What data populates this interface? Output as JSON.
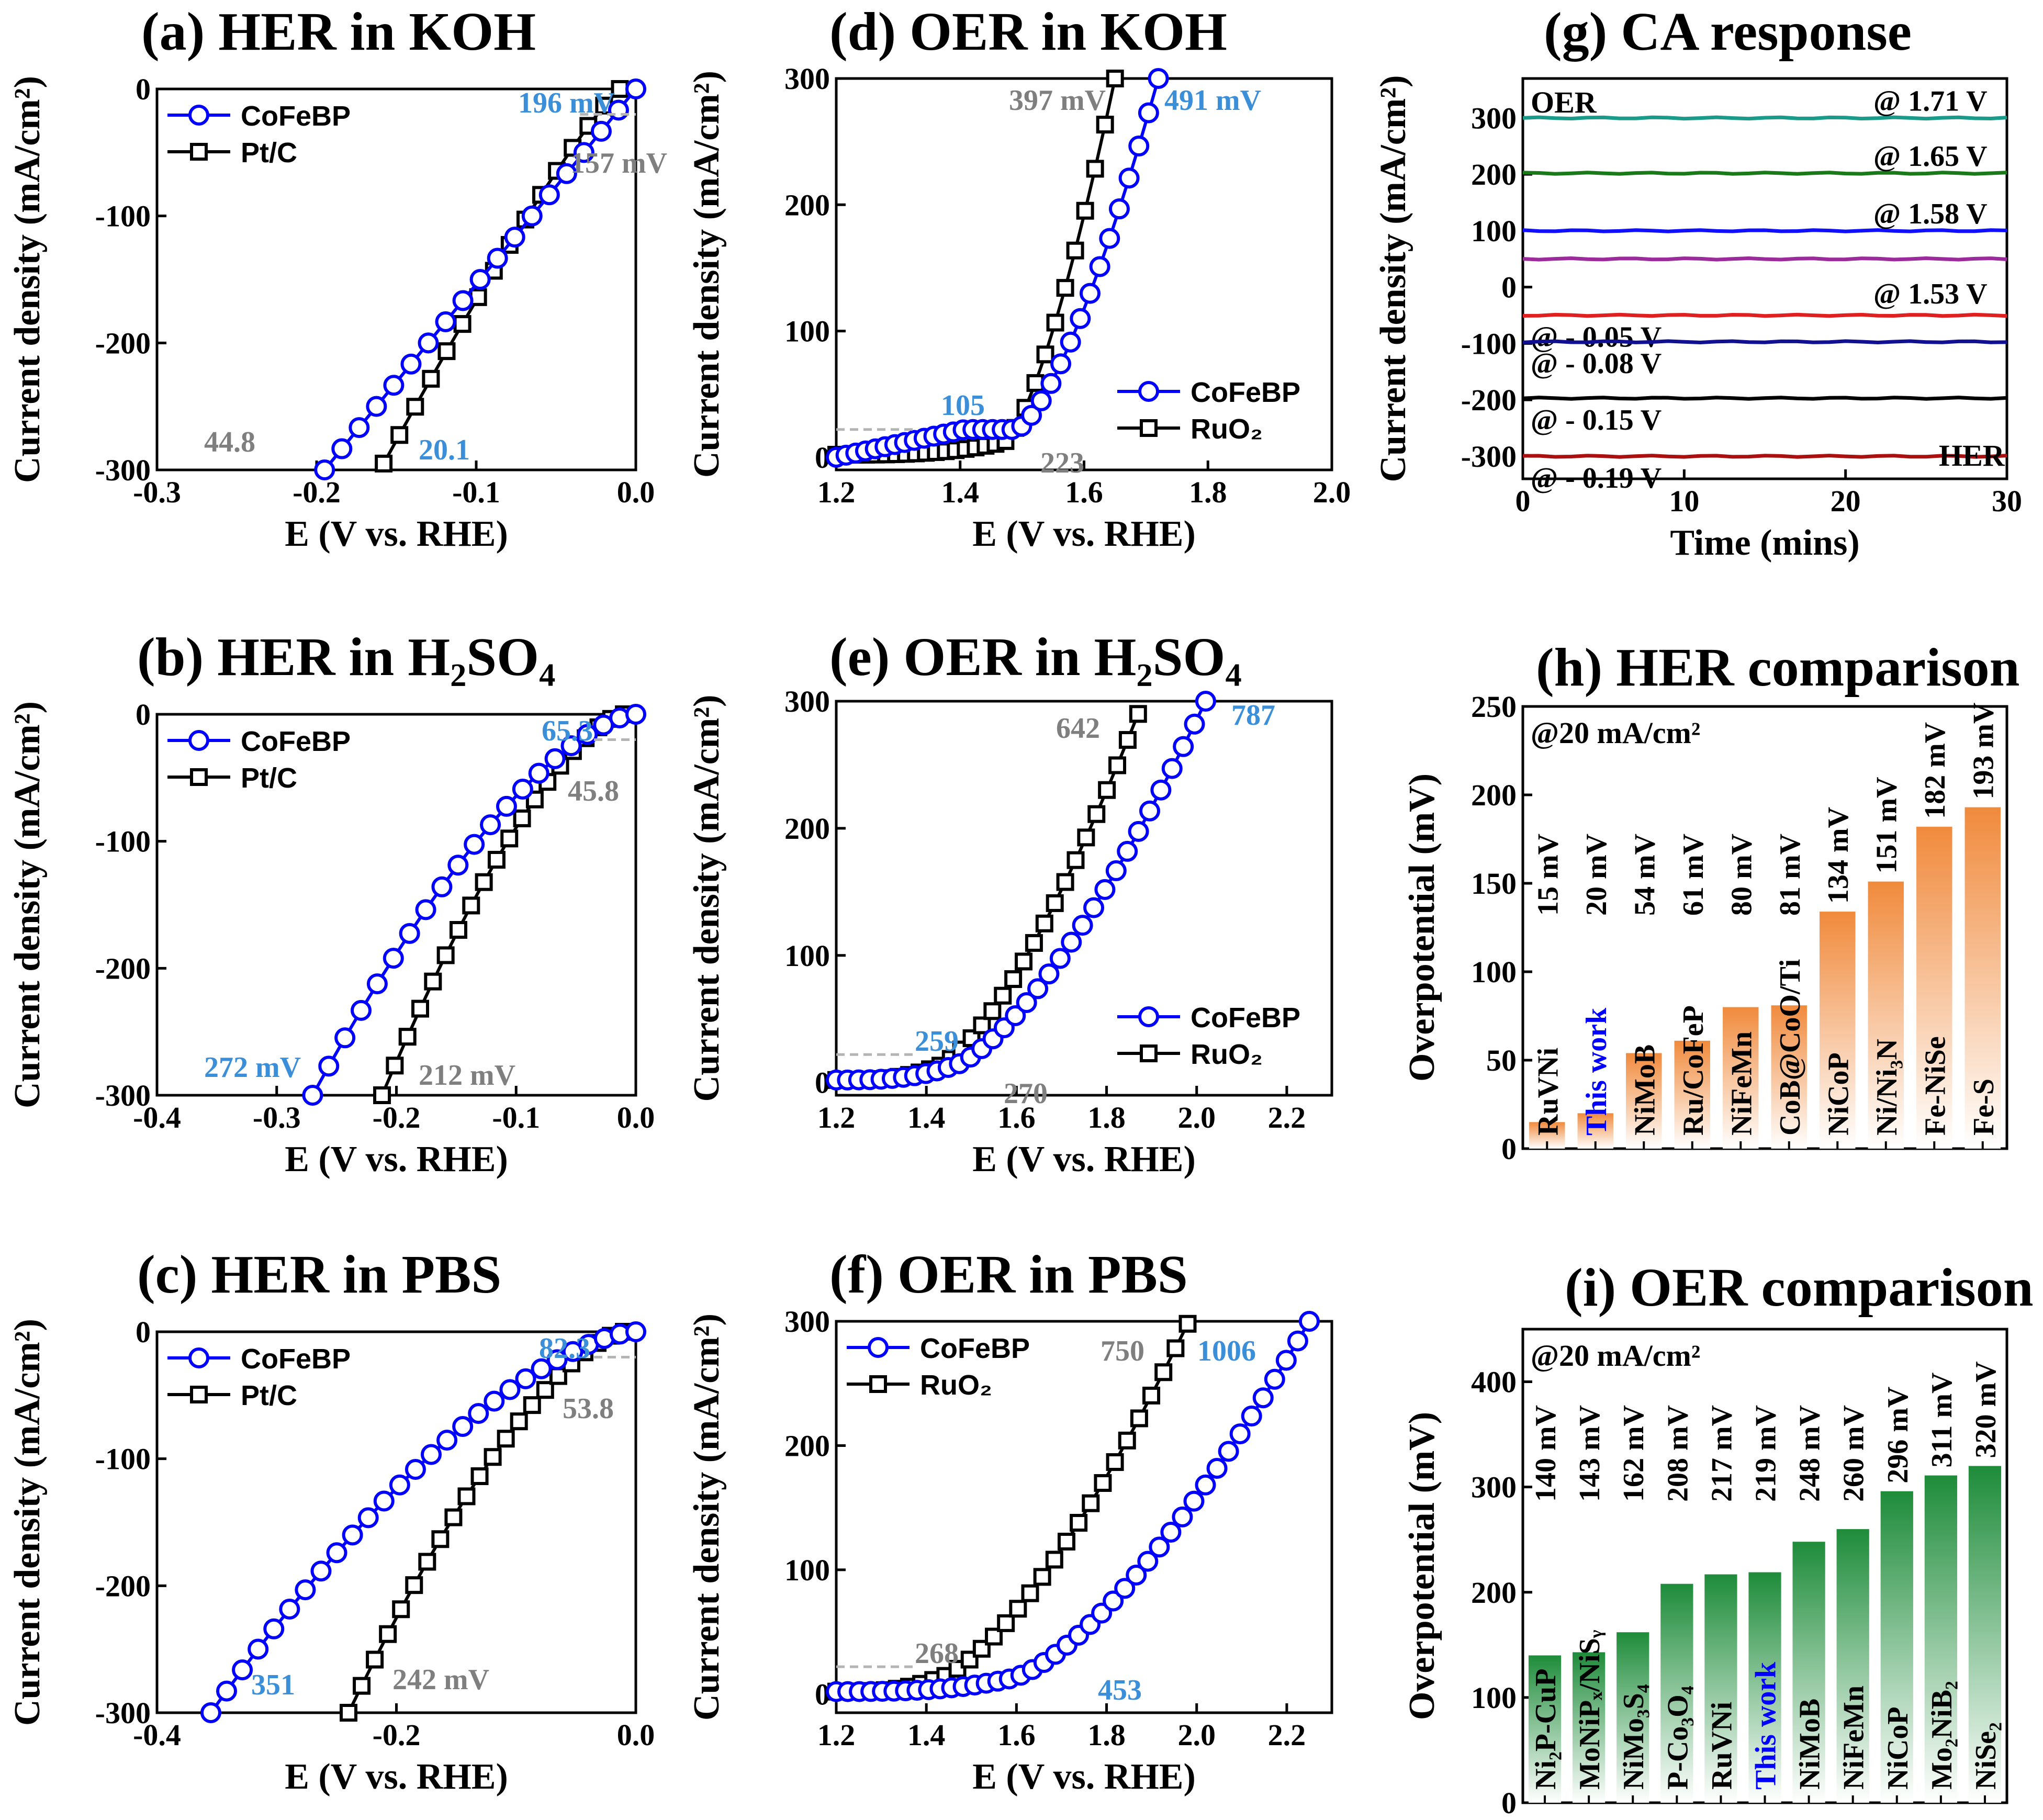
{
  "colors": {
    "cofebp": "#0000ff",
    "ref": "#000000",
    "blue_ann": "#3b8ed8",
    "gray_ann": "#7f7f7f",
    "dash": "#b4b4b4",
    "her_bar": "#f08a3c",
    "oer_bar": "#1e8c3a",
    "highlight": "#0000ff"
  },
  "chart_data": [
    {
      "id": "a",
      "type": "line",
      "title": "(a) HER in KOH",
      "xlabel": "E (V vs. RHE)",
      "ylabel": "Current density (mA/cm²)",
      "xlim": [
        -0.3,
        0.0
      ],
      "ylim": [
        -300,
        0
      ],
      "xticks": [
        "-0.3",
        "-0.2",
        "-0.1",
        "0.0"
      ],
      "yticks": [
        "-300",
        "-200",
        "-100",
        "0"
      ],
      "legend": "top-left",
      "series": [
        {
          "name": "CoFeBP",
          "marker": "circle",
          "x_range": [
            -0.195,
            0.0
          ],
          "y_at_start": -300,
          "onset": 20.1,
          "curvature": 1.0
        },
        {
          "name": "Pt/C",
          "marker": "square",
          "x_range": [
            -0.158,
            -0.01
          ],
          "y_at_start": -295,
          "onset": 44.8,
          "curvature": 1.1
        }
      ],
      "annotations": [
        {
          "text": "196 mV",
          "x": -0.196,
          "y": -280,
          "color": "blue"
        },
        {
          "text": "157 mV",
          "x": -0.13,
          "y": -290,
          "color": "gray"
        },
        {
          "text": "44.8",
          "x": -0.065,
          "y": -8,
          "color": "gray"
        },
        {
          "text": "20.1",
          "x": -0.035,
          "y": -60,
          "color": "blue"
        }
      ]
    },
    {
      "id": "b",
      "type": "line",
      "title": "(b) HER in H₂SO₄",
      "xlabel": "E (V vs. RHE)",
      "ylabel": "Current density (mA/cm²)",
      "xlim": [
        -0.4,
        0.0
      ],
      "ylim": [
        -300,
        0
      ],
      "xticks": [
        "-0.4",
        "-0.3",
        "-0.2",
        "-0.1",
        "0.0"
      ],
      "yticks": [
        "-300",
        "-200",
        "-100",
        "0"
      ],
      "legend": "top-left",
      "series": [
        {
          "name": "CoFeBP",
          "marker": "circle",
          "x_range": [
            -0.27,
            0.0
          ],
          "onset": 65.3
        },
        {
          "name": "Pt/C",
          "marker": "square",
          "x_range": [
            -0.21,
            -0.01
          ],
          "onset": 45.8
        }
      ],
      "annotations": [
        {
          "text": "65.3",
          "color": "blue"
        },
        {
          "text": "45.8",
          "color": "gray"
        },
        {
          "text": "272 mV",
          "color": "blue"
        },
        {
          "text": "212 mV",
          "color": "gray"
        }
      ]
    },
    {
      "id": "c",
      "type": "line",
      "title": "(c) HER in PBS",
      "xlabel": "E (V vs. RHE)",
      "ylabel": "Current density (mA/cm²)",
      "xlim": [
        -0.4,
        0.0
      ],
      "ylim": [
        -300,
        0
      ],
      "xticks": [
        "-0.4",
        "-0.2",
        "0.0"
      ],
      "yticks": [
        "-300",
        "-200",
        "-100",
        "0"
      ],
      "legend": "top-left",
      "series": [
        {
          "name": "CoFeBP",
          "marker": "circle",
          "x_range": [
            -0.35,
            0.0
          ],
          "onset": 82.3
        },
        {
          "name": "Pt/C",
          "marker": "square",
          "x_range": [
            -0.24,
            -0.01
          ],
          "onset": 53.8
        }
      ],
      "annotations": [
        {
          "text": "82.3",
          "color": "blue"
        },
        {
          "text": "53.8",
          "color": "gray"
        },
        {
          "text": "351",
          "color": "blue"
        },
        {
          "text": "242 mV",
          "color": "gray"
        }
      ]
    },
    {
      "id": "d",
      "type": "line",
      "title": "(d) OER in KOH",
      "xlabel": "E (V vs. RHE)",
      "ylabel": "Current density (mA/cm²)",
      "xlim": [
        1.2,
        2.0
      ],
      "ylim": [
        -10,
        300
      ],
      "xticks": [
        "1.2",
        "1.4",
        "1.6",
        "1.8",
        "2.0"
      ],
      "yticks": [
        "0",
        "100",
        "200",
        "300"
      ],
      "legend": "bottom-right",
      "series": [
        {
          "name": "CoFeBP",
          "marker": "circle",
          "x_range": [
            1.2,
            1.72
          ],
          "onset": 105
        },
        {
          "name": "RuO₂",
          "marker": "square",
          "x_range": [
            1.2,
            1.65
          ],
          "onset": 223
        }
      ],
      "annotations": [
        {
          "text": "397 mV",
          "color": "gray"
        },
        {
          "text": "491 mV",
          "color": "blue"
        },
        {
          "text": "105",
          "color": "blue"
        },
        {
          "text": "223",
          "color": "gray"
        }
      ]
    },
    {
      "id": "e",
      "type": "line",
      "title": "(e) OER in H₂SO₄",
      "xlabel": "E (V vs. RHE)",
      "ylabel": "Current density (mA/cm²)",
      "xlim": [
        1.2,
        2.3
      ],
      "ylim": [
        -10,
        300
      ],
      "xticks": [
        "1.2",
        "1.4",
        "1.6",
        "1.8",
        "2.0",
        "2.2"
      ],
      "yticks": [
        "0",
        "100",
        "200",
        "300"
      ],
      "legend": "bottom-right",
      "series": [
        {
          "name": "CoFeBP",
          "marker": "circle",
          "x_range": [
            1.2,
            2.02
          ],
          "onset": 259
        },
        {
          "name": "RuO₂",
          "marker": "square",
          "x_range": [
            1.2,
            1.87
          ],
          "onset": 270
        }
      ],
      "annotations": [
        {
          "text": "642",
          "color": "gray"
        },
        {
          "text": "787",
          "color": "blue"
        },
        {
          "text": "259",
          "color": "blue"
        },
        {
          "text": "270",
          "color": "gray"
        }
      ]
    },
    {
      "id": "f",
      "type": "line",
      "title": "(f) OER in PBS",
      "xlabel": "E (V vs. RHE)",
      "ylabel": "Current density (mA/cm²)",
      "xlim": [
        1.2,
        2.3
      ],
      "ylim": [
        -15,
        300
      ],
      "xticks": [
        "1.2",
        "1.4",
        "1.6",
        "1.8",
        "2.0",
        "2.2"
      ],
      "yticks": [
        "0",
        "100",
        "200",
        "300"
      ],
      "legend": "top-left",
      "series": [
        {
          "name": "CoFeBP",
          "marker": "circle",
          "x_range": [
            1.2,
            2.25
          ],
          "onset": 453
        },
        {
          "name": "RuO₂",
          "marker": "square",
          "x_range": [
            1.2,
            1.98
          ],
          "onset": 268
        }
      ],
      "annotations": [
        {
          "text": "750",
          "color": "gray"
        },
        {
          "text": "1006",
          "color": "blue"
        },
        {
          "text": "268",
          "color": "gray"
        },
        {
          "text": "453",
          "color": "blue"
        }
      ]
    },
    {
      "id": "g",
      "type": "line",
      "title": "(g) CA response",
      "xlabel": "Time (mins)",
      "ylabel": "Current density (mA/cm²)",
      "xlim": [
        0,
        30
      ],
      "ylim": [
        -340,
        370
      ],
      "xticks": [
        "0",
        "10",
        "20",
        "30"
      ],
      "yticks": [
        "-300",
        "-200",
        "-100",
        "0",
        "100",
        "200",
        "300"
      ],
      "corner_labels": {
        "top": "OER",
        "bottom": "HER"
      },
      "series": [
        {
          "name": "@ 1.71 V",
          "y": 300,
          "color": "#1a9a8a"
        },
        {
          "name": "@ 1.65 V",
          "y": 202,
          "color": "#1a7a1a"
        },
        {
          "name": "@ 1.58 V",
          "y": 100,
          "color": "#1010ff"
        },
        {
          "name": "@ 1.53 V",
          "y": 50,
          "color": "#9b2a9b"
        },
        {
          "name": "@ - 0.05 V",
          "y": -50,
          "color": "#e02020"
        },
        {
          "name": "@ - 0.08 V",
          "y": -97,
          "color": "#101090"
        },
        {
          "name": "@ - 0.15 V",
          "y": -197,
          "color": "#000000"
        },
        {
          "name": "@ - 0.19 V",
          "y": -300,
          "color": "#aa1010"
        }
      ]
    },
    {
      "id": "h",
      "type": "bar",
      "title": "(h) HER comparison",
      "ylabel": "Overpotential (mV)",
      "ylim": [
        0,
        250
      ],
      "yticks": [
        "0",
        "50",
        "100",
        "150",
        "200",
        "250"
      ],
      "note": "@20 mA/cm²",
      "categories": [
        "RuVNi",
        "This work",
        "NiMoB",
        "Ru/CoFeP",
        "NiFeMn",
        "CoB@CoO/Ti",
        "NiCoP",
        "Ni/Ni₃N",
        "Fe-NiSe",
        "Fe-S"
      ],
      "values": [
        15,
        20,
        54,
        61,
        80,
        81,
        134,
        151,
        182,
        193
      ],
      "value_labels": [
        "15 mV",
        "20 mV",
        "54 mV",
        "61 mV",
        "80 mV",
        "81 mV",
        "134 mV",
        "151 mV",
        "182 mV",
        "193 mV"
      ]
    },
    {
      "id": "i",
      "type": "bar",
      "title": "(i) OER comparison",
      "ylabel": "Overpotential (mV)",
      "ylim": [
        0,
        450
      ],
      "yticks": [
        "0",
        "100",
        "200",
        "300",
        "400"
      ],
      "note": "@20 mA/cm²",
      "categories": [
        "Ni₂P-CuP",
        "MoNiPₓ/NiSᵧ",
        "NiMo₃S₄",
        "P-Co₃O₄",
        "RuVNi",
        "This work",
        "NiMoB",
        "NiFeMn",
        "NiCoP",
        "Mo₂NiB₂",
        "NiSe₂"
      ],
      "values": [
        140,
        143,
        162,
        208,
        217,
        219,
        248,
        260,
        296,
        311,
        320
      ],
      "value_labels": [
        "140 mV",
        "143 mV",
        "162 mV",
        "208 mV",
        "217 mV",
        "219 mV",
        "248 mV",
        "260 mV",
        "296 mV",
        "311 mV",
        "320 mV"
      ]
    }
  ]
}
